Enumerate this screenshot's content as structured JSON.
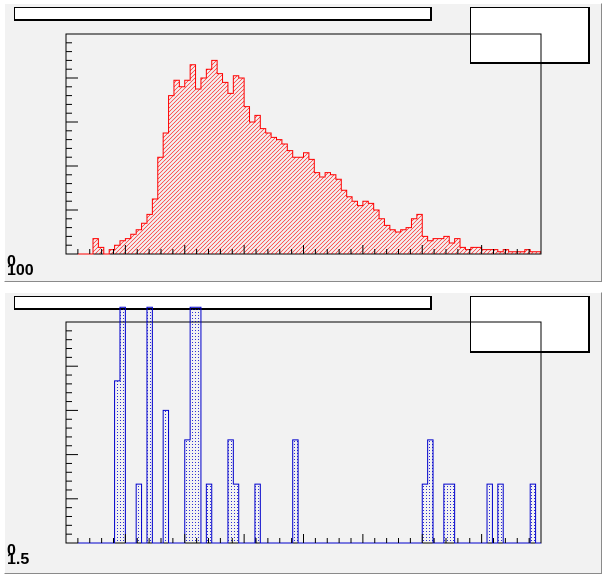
{
  "canvas": {
    "background": "#f2f2f2"
  },
  "chart_data": [
    {
      "type": "bar",
      "style": "step-histogram",
      "title": "",
      "stats_text": "",
      "line_color": "#ff0000",
      "fill_color": "#ff0000",
      "fill_pattern": "hatch",
      "ylim": [
        0,
        100
      ],
      "y_labels": [
        "0",
        "100"
      ],
      "bins": 88,
      "values": [
        0,
        0,
        0,
        0,
        0,
        7,
        3,
        0,
        2,
        4,
        6,
        7,
        9,
        11,
        14,
        18,
        25,
        44,
        55,
        72,
        79,
        76,
        79,
        86,
        75,
        80,
        84,
        88,
        82,
        78,
        73,
        81,
        80,
        67,
        60,
        63,
        57,
        55,
        53,
        52,
        50,
        47,
        44,
        44,
        46,
        43,
        37,
        35,
        37,
        36,
        34,
        29,
        26,
        24,
        22,
        24,
        23,
        20,
        16,
        13,
        11,
        10,
        11,
        12,
        16,
        18,
        8,
        6,
        7,
        7,
        8,
        5,
        7,
        3,
        2,
        3,
        3,
        2,
        2,
        2,
        1,
        2,
        1,
        1,
        1,
        2,
        1,
        1
      ]
    },
    {
      "type": "bar",
      "style": "step-histogram",
      "title": "",
      "stats_text": "",
      "line_color": "#0000cc",
      "fill_color": "#0000cc",
      "fill_pattern": "dots",
      "ylim": [
        0,
        1.5
      ],
      "y_labels": [
        "0",
        "1.5"
      ],
      "bins": 88,
      "values": [
        0,
        0,
        0,
        0,
        0,
        0,
        0,
        0,
        0,
        1.1,
        1.6,
        0,
        0,
        0.4,
        0,
        1.6,
        0.0,
        0,
        0.9,
        0.0,
        0.0,
        0.0,
        0.7,
        1.6,
        1.6,
        0.0,
        0.4,
        0.0,
        0,
        0,
        0.7,
        0.4,
        0.0,
        0.0,
        0.0,
        0.4,
        0,
        0,
        0,
        0,
        0,
        0,
        0.7,
        0,
        0,
        0,
        0,
        0,
        0,
        0,
        0,
        0,
        0,
        0,
        0,
        0,
        0,
        0,
        0,
        0,
        0,
        0,
        0,
        0,
        0,
        0,
        0.4,
        0.7,
        0.0,
        0,
        0.4,
        0.4,
        0,
        0,
        0,
        0,
        0,
        0,
        0.4,
        0,
        0.4,
        0,
        0,
        0,
        0,
        0,
        0.4,
        0
      ]
    }
  ]
}
